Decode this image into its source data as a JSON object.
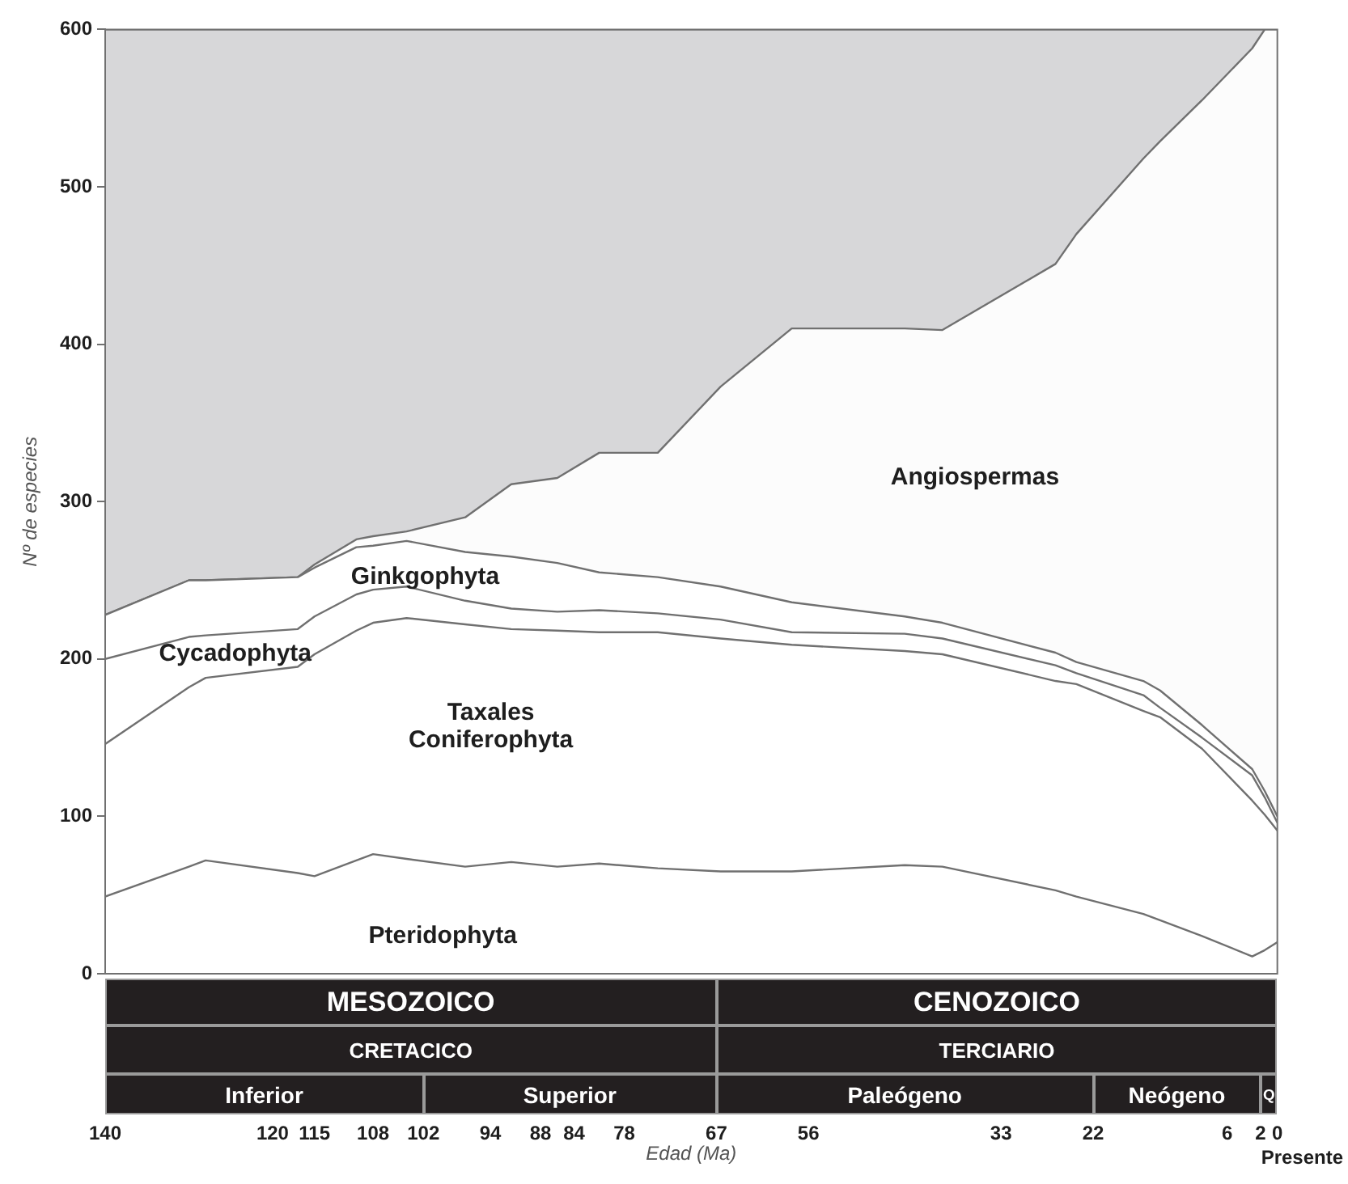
{
  "chart_data": {
    "type": "area",
    "stacked": true,
    "xlabel": "Edad (Ma)",
    "ylabel": "Nº de especies",
    "x": [
      140,
      130,
      128,
      117,
      115,
      110,
      108,
      104,
      97,
      91.5,
      86,
      81,
      74,
      66.5,
      58,
      44.5,
      40,
      26.5,
      24,
      16,
      14,
      9,
      3,
      1.5,
      0
    ],
    "xlim": [
      140,
      0
    ],
    "xticks": [
      140,
      120,
      115,
      108,
      102,
      94,
      88,
      84,
      78,
      67,
      56,
      33,
      22,
      6,
      2,
      0
    ],
    "ylim": [
      0,
      600
    ],
    "yticks": [
      0,
      100,
      200,
      300,
      400,
      500,
      600
    ],
    "grid": false,
    "legend": false,
    "series": [
      {
        "name": "Pteridophyta",
        "color": "#ffffff",
        "values": [
          49,
          68,
          72,
          64,
          62,
          72,
          76,
          73,
          68,
          71,
          68,
          70,
          67,
          65,
          65,
          69,
          68,
          53,
          49,
          38,
          34,
          24,
          11,
          15,
          20
        ]
      },
      {
        "name": "Taxales Coniferophyta",
        "color": "#ffffff",
        "values": [
          97,
          114,
          116,
          131,
          141,
          146,
          147,
          153,
          154,
          148,
          150,
          147,
          150,
          148,
          144,
          136,
          135,
          133,
          135,
          129,
          129,
          119,
          99,
          86,
          71
        ]
      },
      {
        "name": "Cycadophyta",
        "color": "#ffffff",
        "values": [
          54,
          32,
          27,
          24,
          24,
          23,
          21,
          20,
          15,
          13,
          12,
          14,
          12,
          12,
          8,
          11,
          10,
          10,
          7,
          10,
          6,
          7,
          16,
          11,
          5
        ]
      },
      {
        "name": "Ginkgophyta",
        "color": "#ffffff",
        "values": [
          28,
          36,
          35,
          33,
          31,
          30,
          28,
          29,
          31,
          33,
          31,
          24,
          23,
          21,
          19,
          11,
          10,
          8,
          7,
          9,
          11,
          8,
          4,
          4,
          4
        ]
      },
      {
        "name": "Angiospermas",
        "color": "#fcfcfc",
        "values": [
          0,
          0,
          0,
          0,
          2,
          5,
          6,
          6,
          22,
          46,
          54,
          76,
          79,
          127,
          174,
          183,
          186,
          247,
          272,
          332,
          349,
          397,
          458,
          484,
          500
        ]
      },
      {
        "color": "#d7d7d9",
        "values": [
          372,
          350,
          350,
          348,
          340,
          324,
          322,
          319,
          310,
          289,
          285,
          269,
          269,
          227,
          190,
          190,
          191,
          149,
          130,
          82,
          71,
          45,
          12,
          0,
          0
        ]
      }
    ],
    "annotations": [
      "MESOZOICO",
      "CENOZOICO",
      "CRETACICO",
      "TERCIARIO",
      "Inferior",
      "Superior",
      "Paleógeno",
      "Neógeno",
      "Q",
      "Presente"
    ]
  }
}
